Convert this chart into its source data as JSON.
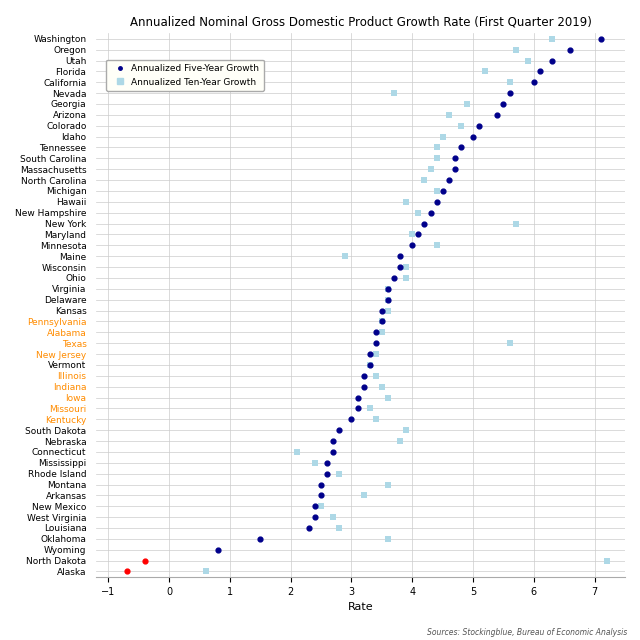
{
  "title": "Annualized Nominal Gross Domestic Product Growth Rate (First Quarter 2019)",
  "xlabel": "Rate",
  "source": "Sources: Stockingblue, Bureau of Economic Analysis",
  "states": [
    "Washington",
    "Oregon",
    "Utah",
    "Florida",
    "California",
    "Nevada",
    "Georgia",
    "Arizona",
    "Colorado",
    "Idaho",
    "Tennessee",
    "South Carolina",
    "Massachusetts",
    "North Carolina",
    "Michigan",
    "Hawaii",
    "New Hampshire",
    "New York",
    "Maryland",
    "Minnesota",
    "Maine",
    "Wisconsin",
    "Ohio",
    "Virginia",
    "Delaware",
    "Kansas",
    "Pennsylvania",
    "Alabama",
    "Texas",
    "New Jersey",
    "Vermont",
    "Illinois",
    "Indiana",
    "Iowa",
    "Missouri",
    "Kentucky",
    "South Dakota",
    "Nebraska",
    "Connecticut",
    "Mississippi",
    "Rhode Island",
    "Montana",
    "Arkansas",
    "New Mexico",
    "West Virginia",
    "Louisiana",
    "Oklahoma",
    "Wyoming",
    "North Dakota",
    "Alaska"
  ],
  "five_year": [
    7.1,
    6.6,
    6.3,
    6.1,
    6.0,
    5.6,
    5.5,
    5.4,
    5.1,
    5.0,
    4.8,
    4.7,
    4.7,
    4.6,
    4.5,
    4.4,
    4.3,
    4.2,
    4.1,
    4.0,
    3.8,
    3.8,
    3.7,
    3.6,
    3.6,
    3.5,
    3.5,
    3.4,
    3.4,
    3.3,
    3.3,
    3.2,
    3.2,
    3.1,
    3.1,
    3.0,
    2.8,
    2.7,
    2.7,
    2.6,
    2.6,
    2.5,
    2.5,
    2.4,
    2.4,
    2.3,
    1.5,
    0.8,
    -0.4,
    -0.7
  ],
  "ten_year": [
    6.3,
    5.7,
    5.9,
    5.2,
    5.6,
    3.7,
    4.9,
    4.6,
    4.8,
    4.5,
    4.4,
    4.4,
    4.3,
    4.2,
    4.4,
    3.9,
    4.1,
    5.7,
    4.0,
    4.4,
    2.9,
    3.9,
    3.9,
    3.6,
    3.6,
    3.6,
    3.5,
    3.5,
    5.6,
    3.4,
    3.3,
    3.4,
    3.5,
    3.6,
    3.3,
    3.4,
    3.9,
    3.8,
    2.1,
    2.4,
    2.8,
    3.6,
    3.2,
    2.5,
    2.7,
    2.8,
    3.6,
    null,
    7.2,
    0.6
  ],
  "orange_states": [
    "Pennsylvania",
    "Alabama",
    "Texas",
    "New Jersey",
    "Illinois",
    "Indiana",
    "Iowa",
    "Missouri",
    "Kentucky"
  ],
  "five_year_color": "#00008B",
  "ten_year_color": "#ADD8E6",
  "five_year_negative_color": "#FF0000",
  "background_color": "#FFFFFF",
  "grid_color": "#CCCCCC",
  "xlim": [
    -1.2,
    7.5
  ],
  "xticks": [
    -1,
    0,
    1,
    2,
    3,
    4,
    5,
    6,
    7
  ],
  "title_fontsize": 8.5,
  "label_fontsize": 6.5,
  "source_fontsize": 5.5,
  "legend_fontsize": 6.5,
  "marker_size_dot": 12,
  "marker_size_sq": 25
}
